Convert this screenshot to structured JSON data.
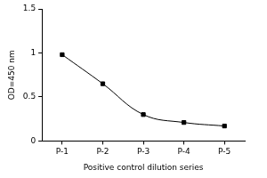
{
  "chart_data": {
    "type": "line",
    "x_label": "Positive control dilution series",
    "y_label": "OD=450 nm",
    "categories": [
      "P-1",
      "P-2",
      "P-3",
      "P-4",
      "P-5"
    ],
    "values": [
      0.98,
      0.65,
      0.3,
      0.21,
      0.17
    ],
    "color": "#000000",
    "marker": "square",
    "ylim": [
      0,
      1.5
    ],
    "yticks": [
      0,
      0.5,
      1,
      1.5
    ],
    "grid": false
  }
}
